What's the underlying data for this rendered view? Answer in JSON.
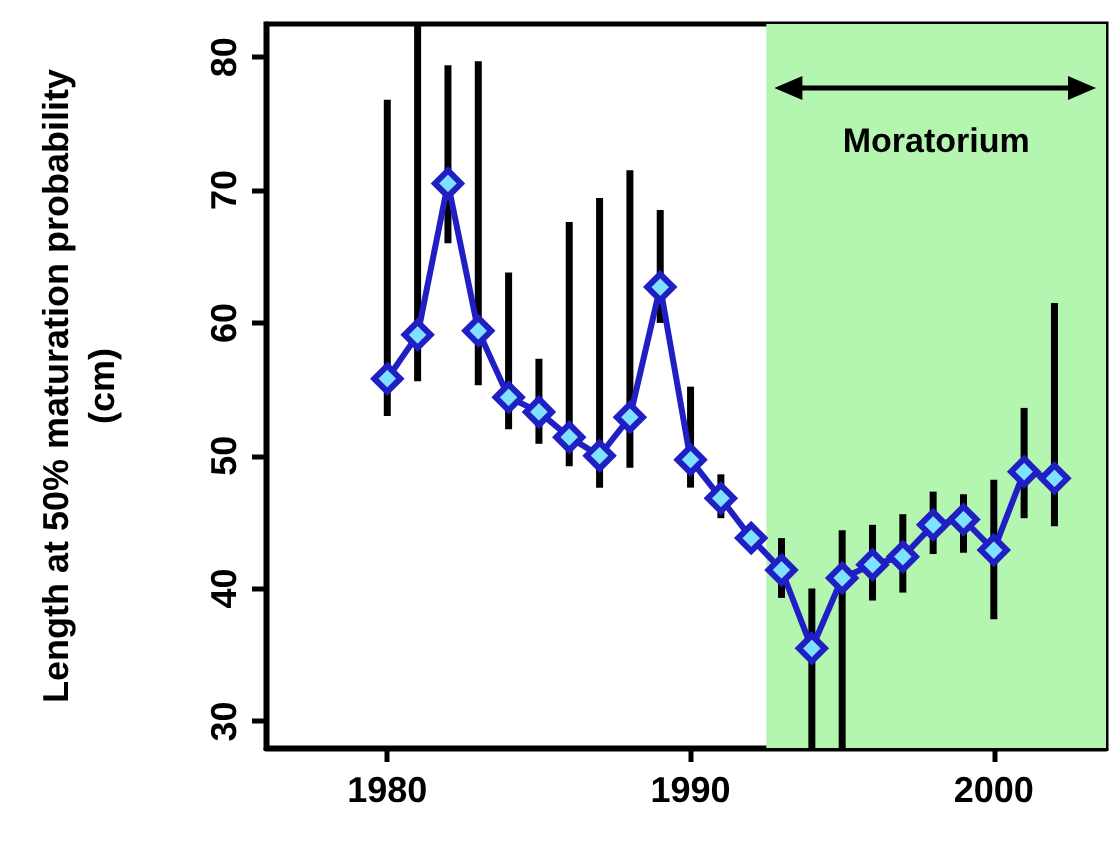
{
  "chart_data": {
    "type": "line",
    "ylabel": "Length at 50% maturation probability (cm)",
    "x": [
      1980,
      1981,
      1982,
      1983,
      1984,
      1985,
      1986,
      1987,
      1988,
      1989,
      1990,
      1991,
      1992,
      1993,
      1994,
      1995,
      1996,
      1997,
      1998,
      1999,
      2000,
      2001,
      2002
    ],
    "series": [
      {
        "color": "#1f1fc4",
        "values": [
          55.8,
          59.1,
          70.5,
          59.4,
          54.4,
          53.3,
          51.4,
          50.0,
          52.9,
          62.7,
          49.7,
          46.8,
          43.8,
          41.4,
          35.5,
          40.8,
          41.8,
          42.4,
          44.8,
          45.2,
          42.9,
          48.8,
          48.3
        ],
        "errors": [
          [
            53.0,
            76.8
          ],
          [
            55.6,
            82.5
          ],
          [
            66,
            79.4
          ],
          [
            55.3,
            79.7
          ],
          [
            52.0,
            63.8
          ],
          [
            50.9,
            57.3
          ],
          [
            49.2,
            67.6
          ],
          [
            47.6,
            69.4
          ],
          [
            49.1,
            71.5
          ],
          [
            60,
            68.5
          ],
          [
            47.6,
            55.2
          ],
          [
            45.3,
            48.6
          ],
          null,
          [
            39.3,
            43.8
          ],
          [
            28,
            40.0
          ],
          [
            28,
            44.4
          ],
          [
            39.1,
            44.8
          ],
          [
            39.7,
            45.6
          ],
          [
            42.6,
            47.3
          ],
          [
            42.7,
            47.1
          ],
          [
            37.7,
            48.2
          ],
          [
            45.3,
            53.6
          ],
          [
            44.7,
            61.5
          ]
        ]
      }
    ],
    "xlim": [
      1976,
      2003.7
    ],
    "xticks": [
      1980,
      1990,
      2000
    ],
    "ylim": [
      28,
      82.5
    ],
    "yticks": [
      30,
      40,
      50,
      60,
      70,
      80
    ],
    "bands": [
      {
        "axis": "x",
        "from": 1992.5,
        "to": 2003.7,
        "label": "Moratorium",
        "color": "#b4f5b0"
      }
    ],
    "grid": false,
    "marker": "diamond",
    "line_style": "solid"
  }
}
